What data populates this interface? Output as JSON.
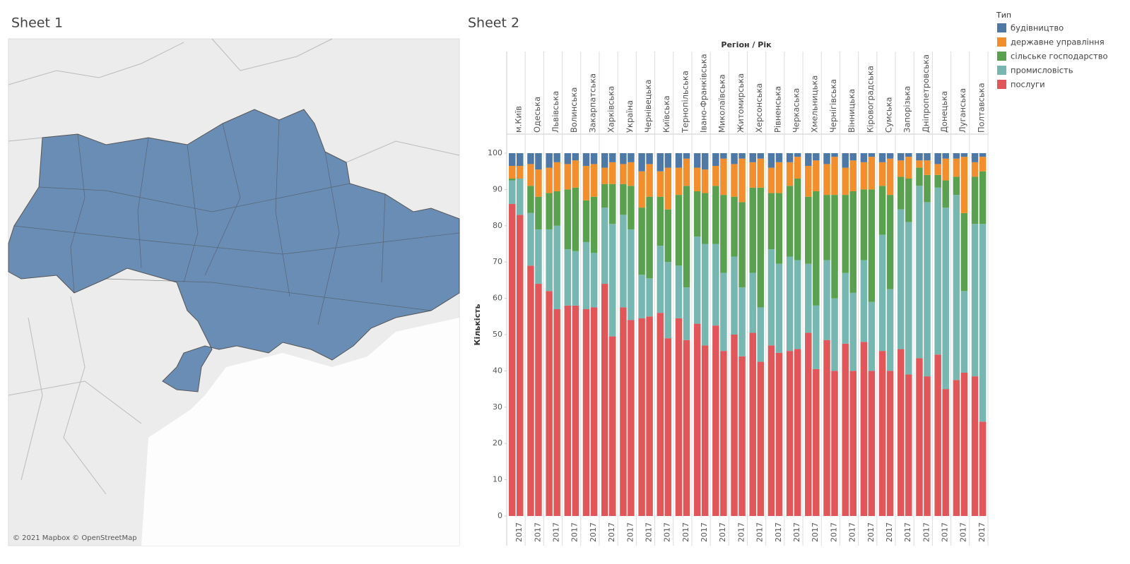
{
  "map_sheet": {
    "title": "Sheet 1",
    "attribution": "© 2021 Mapbox © OpenStreetMap"
  },
  "chart_data": {
    "type": "bar",
    "stacked": true,
    "title": "Sheet 2",
    "x_label": "Регіон / Рік",
    "y_label": "Кількість",
    "legend_title": "Тип",
    "regions": [
      "м.Київ",
      "Одеська",
      "Львівська",
      "Волинська",
      "Закарпатська",
      "Харківська",
      "Україна",
      "Чернівецька",
      "Київська",
      "Тернопільська",
      "Івано-Франківська",
      "Миколаївська",
      "Житомирська",
      "Херсонська",
      "Рівненська",
      "Черкаська",
      "Хмельницька",
      "Чернігівська",
      "Вінницька",
      "Кіровоградська",
      "Сумська",
      "Запорізька",
      "Дніпропетровська",
      "Донецька",
      "Луганська",
      "Полтавська"
    ],
    "categories": [
      null,
      "2017",
      null,
      "2017",
      null,
      "2017",
      null,
      "2017",
      null,
      "2017",
      null,
      "2017",
      null,
      "2017",
      null,
      "2017",
      null,
      "2017",
      null,
      "2017",
      null,
      "2017",
      null,
      "2017",
      null,
      "2017",
      null,
      "2017",
      null,
      "2017",
      null,
      "2017",
      null,
      "2017",
      null,
      "2017",
      null,
      "2017",
      null,
      "2017",
      null,
      "2017",
      null,
      "2017",
      null,
      "2017",
      null,
      "2017",
      null,
      "2017",
      null,
      "2017"
    ],
    "series": [
      {
        "name": "будівництво",
        "color": "#4e79a7",
        "values": [
          3.5,
          3.5,
          3,
          4.5,
          4,
          2.5,
          3,
          2,
          3.5,
          3,
          4,
          2.5,
          3,
          2.5,
          5,
          3,
          5,
          4,
          4,
          1.5,
          4,
          4.5,
          3.5,
          1.5,
          3,
          1.5,
          2.5,
          1.5,
          4,
          2.5,
          2.5,
          1,
          3.5,
          2,
          3,
          1,
          4,
          2,
          2.5,
          1,
          2.5,
          1.5,
          2,
          1,
          2,
          2,
          3,
          1.5,
          1.5,
          1,
          2.5,
          1
        ]
      },
      {
        "name": "державне управління",
        "color": "#f28e2b",
        "values": [
          3.5,
          3.5,
          6,
          7.5,
          7,
          8,
          7,
          7.5,
          9.5,
          9,
          4.5,
          6,
          5.5,
          6.5,
          10,
          9,
          7,
          11.5,
          7.5,
          7.5,
          6.5,
          6.5,
          5.5,
          10,
          9,
          12,
          7,
          8,
          7,
          8.5,
          6.5,
          6,
          8.5,
          8.5,
          8.5,
          10.5,
          7.5,
          8.5,
          7.5,
          9,
          6.5,
          10,
          4.5,
          6,
          2,
          4,
          3,
          6,
          5,
          15.5,
          4,
          4
        ]
      },
      {
        "name": "сільське господарство",
        "color": "#59a14f",
        "values": [
          0.5,
          0,
          7.5,
          9,
          10,
          9.5,
          16.5,
          17.5,
          11.5,
          15.5,
          6.5,
          11,
          8.5,
          12,
          18.5,
          22.5,
          13.5,
          14.5,
          19.5,
          28,
          12.5,
          14,
          16,
          21.5,
          16.5,
          23.5,
          23.5,
          33,
          15.5,
          19.5,
          19.5,
          22.5,
          18.5,
          31.5,
          18,
          28.5,
          21.5,
          28,
          19.5,
          31,
          13.5,
          26,
          9,
          12,
          5,
          7.5,
          3.5,
          7.5,
          5,
          21.5,
          13,
          14.5
        ]
      },
      {
        "name": "промисловість",
        "color": "#76b7b2",
        "values": [
          6.5,
          10,
          14.5,
          15,
          17,
          23,
          15.5,
          15,
          18.5,
          15,
          21,
          31,
          25.5,
          25,
          12,
          10.5,
          18.5,
          21,
          14.5,
          14.5,
          24,
          28,
          22.5,
          21.5,
          21.5,
          19,
          16.5,
          15,
          26.5,
          24.5,
          26,
          24.5,
          19,
          17.5,
          22,
          20,
          19.5,
          21.5,
          22.5,
          19,
          32,
          22.5,
          38.5,
          42,
          47.5,
          48,
          46,
          50,
          51,
          22.5,
          42,
          54.5
        ]
      },
      {
        "name": "послуги",
        "color": "#e15759",
        "values": [
          86,
          83,
          69,
          64,
          62,
          57,
          58,
          58,
          57,
          57.5,
          64,
          49.5,
          57.5,
          54,
          54.5,
          55,
          56,
          49,
          54.5,
          48.5,
          53,
          47,
          52.5,
          45.5,
          50,
          44,
          50.5,
          42.5,
          47,
          45,
          45.5,
          46,
          50.5,
          40.5,
          48.5,
          40,
          47.5,
          40,
          48,
          40,
          45.5,
          40,
          46,
          39,
          43.5,
          38.5,
          44.5,
          35,
          37.5,
          39.5,
          38.5,
          26
        ]
      }
    ],
    "ylim": [
      0,
      100
    ],
    "yticks": [
      0,
      10,
      20,
      30,
      40,
      50,
      60,
      70,
      80,
      90,
      100
    ]
  }
}
